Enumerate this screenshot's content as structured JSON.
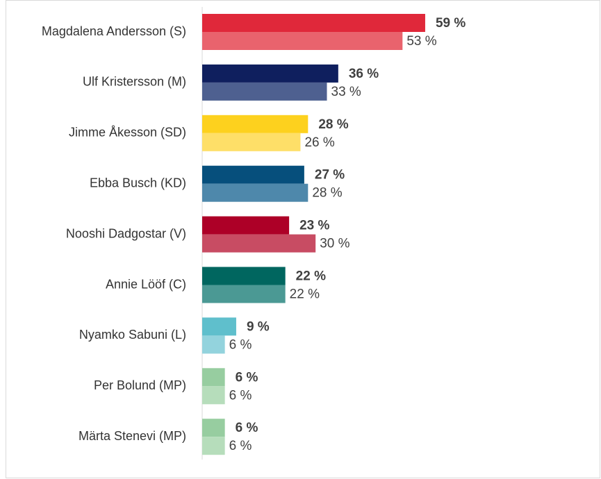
{
  "chart_data": {
    "type": "bar",
    "orientation": "horizontal",
    "categories": [
      "Magdalena Andersson (S)",
      "Ulf Kristersson (M)",
      "Jimme Åkesson (SD)",
      "Ebba Busch (KD)",
      "Nooshi Dadgostar (V)",
      "Annie Lööf (C)",
      "Nyamko Sabuni (L)",
      "Per Bolund (MP)",
      "Märta Stenevi (MP)"
    ],
    "xlim": [
      0,
      100
    ],
    "series": [
      {
        "values": [
          59,
          36,
          28,
          27,
          23,
          22,
          9,
          6,
          6
        ],
        "value_labels": [
          "59 %",
          "36 %",
          "28 %",
          "27 %",
          "23 %",
          "22 %",
          "9 %",
          "6 %",
          "6 %"
        ],
        "colors": [
          "#e0283a",
          "#0f1f5e",
          "#fdd11e",
          "#064f7c",
          "#ad0027",
          "#00665f",
          "#5fbfcc",
          "#97cda0",
          "#97cda0"
        ]
      },
      {
        "values": [
          53,
          33,
          26,
          28,
          30,
          22,
          6,
          6,
          6
        ],
        "value_labels": [
          "53 %",
          "33 %",
          "26 %",
          "28 %",
          "30 %",
          "22 %",
          "6 %",
          "6 %",
          "6 %"
        ],
        "colors": [
          "#e9636d",
          "#4e6090",
          "#fedf68",
          "#4e88ab",
          "#c84c63",
          "#4b9994",
          "#93d3dd",
          "#b6ddbb",
          "#b6ddbb"
        ]
      }
    ]
  }
}
